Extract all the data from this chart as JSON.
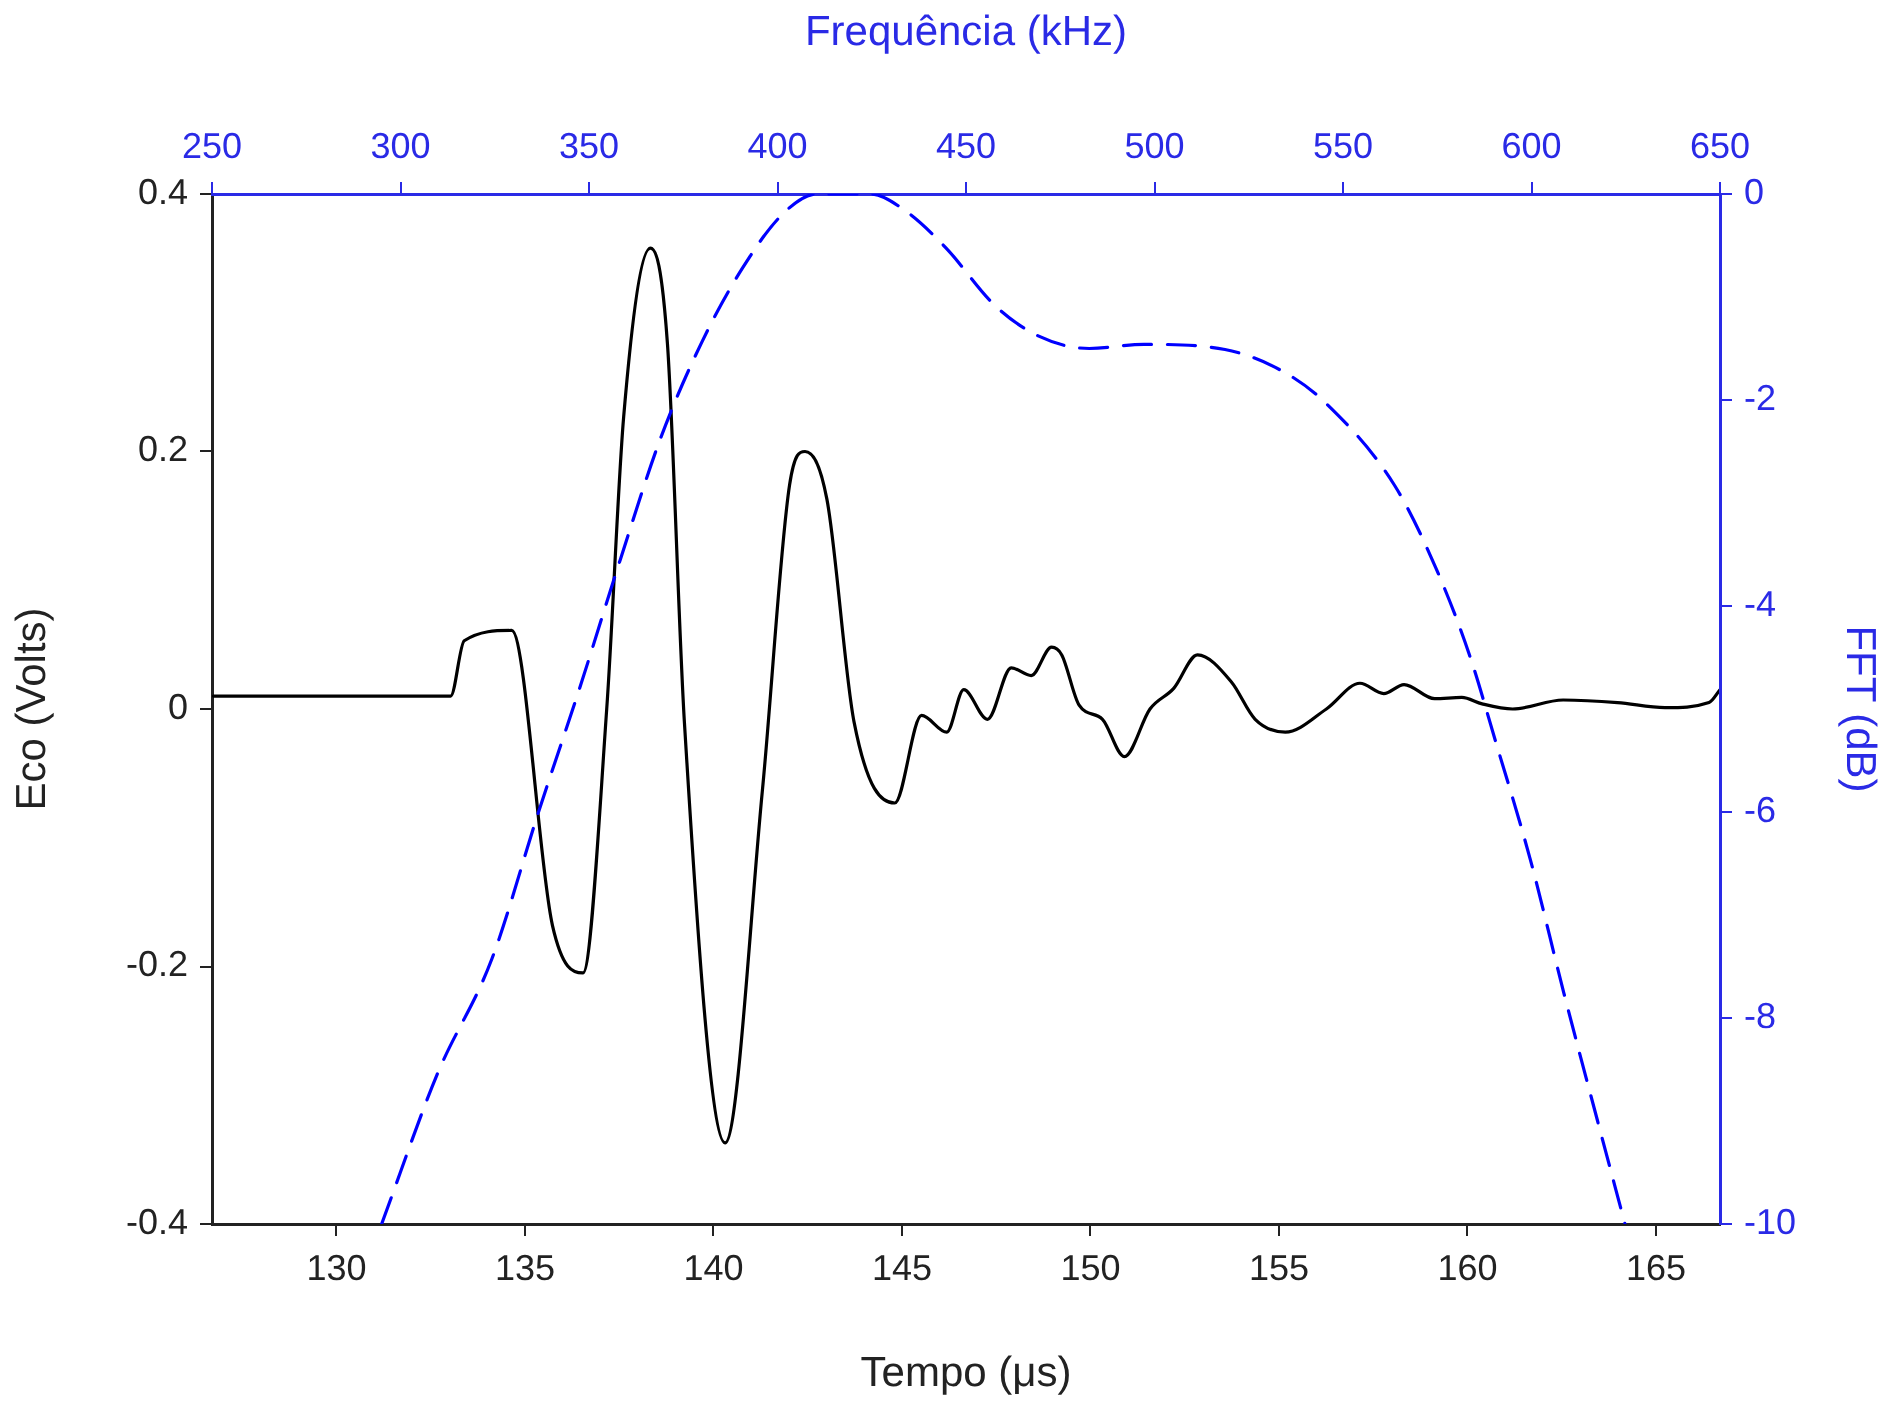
{
  "chart_data": [
    {
      "type": "line",
      "xlabel": "Tempo (μs)",
      "ylabel": "Eco (Volts)",
      "xlim": [
        126.7,
        166.7
      ],
      "xticks": [
        130,
        135,
        140,
        145,
        150,
        155,
        160,
        165
      ],
      "ylim": [
        -0.4,
        0.4
      ],
      "yticks": [
        -0.4,
        -0.2,
        0,
        0.2,
        0.4
      ],
      "grid": false,
      "legend": false,
      "marker": "none",
      "series": [
        {
          "color": "#000000",
          "line_style": "solid",
          "x": [
            126.74,
            133.03,
            133.39,
            134.65,
            135.73,
            136.54,
            137.17,
            137.62,
            138.33,
            138.78,
            139.23,
            140.31,
            141.3,
            142.02,
            142.43,
            143.01,
            143.73,
            144.81,
            145.52,
            146.19,
            146.64,
            147.27,
            147.9,
            148.43,
            148.97,
            149.24,
            149.7,
            150.32,
            150.9,
            151.58,
            152.21,
            152.84,
            153.74,
            154.37,
            155.17,
            156.26,
            157.15,
            157.78,
            158.32,
            159.13,
            159.85,
            160.39,
            161.2,
            162.54,
            163.98,
            165.24,
            166.41,
            166.7
          ],
          "values": [
            0.01,
            0.01,
            0.053,
            0.061,
            -0.168,
            -0.205,
            0.0,
            0.227,
            0.358,
            0.284,
            -0.01,
            -0.337,
            -0.063,
            0.174,
            0.2,
            0.163,
            -0.01,
            -0.073,
            -0.005,
            -0.018,
            0.015,
            -0.008,
            0.032,
            0.026,
            0.048,
            0.042,
            0.003,
            -0.008,
            -0.037,
            0.0,
            0.016,
            0.042,
            0.021,
            -0.008,
            -0.018,
            0.0,
            0.02,
            0.012,
            0.019,
            0.008,
            0.009,
            0.004,
            0.0,
            0.007,
            0.005,
            0.001,
            0.005,
            0.015
          ]
        }
      ]
    },
    {
      "type": "line",
      "xlabel": "Frequência (kHz)",
      "ylabel": "FFT (dB)",
      "xlim": [
        250,
        650
      ],
      "xticks": [
        250,
        300,
        350,
        400,
        450,
        500,
        550,
        600,
        650
      ],
      "ylim": [
        -10,
        0
      ],
      "yticks": [
        -10,
        -8,
        -6,
        -4,
        -2,
        0
      ],
      "grid": false,
      "legend": false,
      "marker": "none",
      "series": [
        {
          "color": "#0000ff",
          "line_style": "dashed",
          "x": [
            295,
            309.7,
            324.2,
            336.7,
            347.5,
            358.3,
            369.1,
            379.9,
            390.7,
            401.5,
            410.5,
            424.8,
            433.8,
            444.6,
            457.6,
            469.3,
            482.7,
            497.2,
            518.7,
            534.9,
            545.7,
            563.7,
            574.5,
            583.5,
            590.6,
            599.6,
            608.6,
            617.6,
            624.8
          ],
          "values": [
            -10,
            -8.55,
            -7.43,
            -5.99,
            -4.8,
            -3.55,
            -2.36,
            -1.44,
            -0.72,
            -0.19,
            0,
            0,
            -0.16,
            -0.52,
            -1.08,
            -1.38,
            -1.5,
            -1.46,
            -1.51,
            -1.74,
            -2.04,
            -2.83,
            -3.62,
            -4.47,
            -5.33,
            -6.45,
            -7.76,
            -9.01,
            -10
          ]
        }
      ]
    }
  ]
}
